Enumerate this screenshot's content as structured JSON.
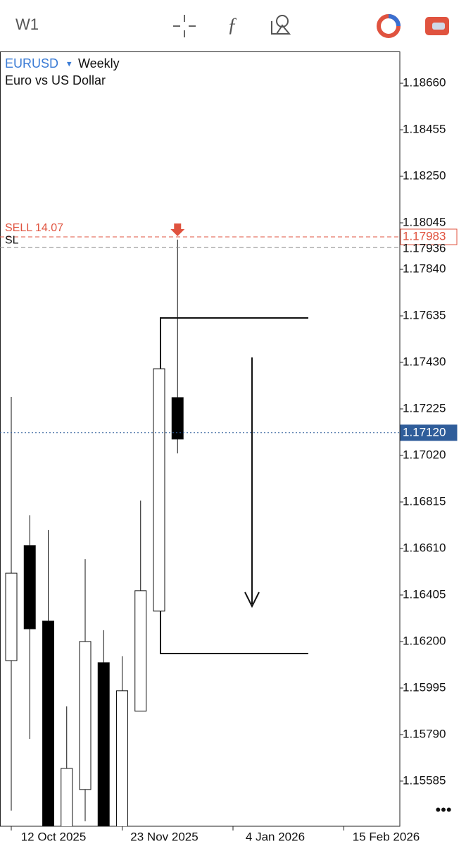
{
  "toolbar": {
    "timeframe": "W1",
    "more": "•••"
  },
  "chart_data": {
    "type": "candlestick",
    "symbol": "EURUSD",
    "symbol_marker": "▾",
    "period": "Weekly",
    "description": "Euro vs US Dollar",
    "categories": [
      "12 Oct 2025",
      null,
      null,
      null,
      null,
      null,
      "23 Nov 2025",
      null,
      null,
      null,
      null,
      null,
      "4 Jan 2026",
      null,
      null,
      null,
      null,
      null,
      "15 Feb 2026",
      null
    ],
    "open": [
      1.16116,
      1.16623,
      1.1629,
      1.1532,
      1.15548,
      1.16107,
      1.1536,
      1.15893,
      1.16334,
      1.17275,
      null,
      null,
      null,
      null,
      null,
      null,
      null,
      null,
      null,
      null
    ],
    "high": [
      1.17278,
      1.16756,
      1.16691,
      1.15914,
      1.16563,
      1.1625,
      1.16135,
      1.16821,
      1.17402,
      1.17971,
      null,
      null,
      null,
      null,
      null,
      null,
      null,
      null,
      null,
      null
    ],
    "low": [
      1.15455,
      1.15771,
      1.1525,
      1.1528,
      1.15408,
      1.153,
      1.1533,
      1.15893,
      1.16334,
      1.17029,
      null,
      null,
      null,
      null,
      null,
      null,
      null,
      null,
      null,
      null
    ],
    "close": [
      1.16501,
      1.16256,
      1.153,
      1.15641,
      1.162,
      1.1535,
      1.15983,
      1.16424,
      1.17402,
      1.17092,
      null,
      null,
      null,
      null,
      null,
      null,
      null,
      null,
      null,
      null
    ],
    "up_color": "#ffffff",
    "down_color": "#000000",
    "ylim": [
      1.15386,
      1.188
    ],
    "yticks": [
      {
        "value": 1.1866,
        "label": "1.18660"
      },
      1.18455,
      {
        "value": 1.1825,
        "label": "1.18250"
      },
      1.18045,
      {
        "value": 1.1784,
        "label": "1.17840"
      },
      1.17635,
      {
        "value": 1.1743,
        "label": "1.17430"
      },
      1.17225,
      {
        "value": 1.1702,
        "label": "1.17020"
      },
      1.16815,
      {
        "value": 1.1661,
        "label": "1.16610"
      },
      1.16405,
      {
        "value": 1.162,
        "label": "1.16200"
      },
      1.15995,
      {
        "value": 1.1579,
        "label": "1.15790"
      },
      1.15585
    ],
    "levels": [
      {
        "name": "SELL 14.07",
        "value": 1.17983,
        "color": "#e0533f",
        "style": "dashed",
        "boxed": true
      },
      {
        "name": "SL",
        "value": 1.17936,
        "color": "#888888",
        "style": "dashed",
        "boxed": false
      },
      {
        "value": 1.1712,
        "label": "1.17120",
        "color": "#2f5d9a",
        "style": "dotted",
        "boxed": true
      }
    ]
  }
}
